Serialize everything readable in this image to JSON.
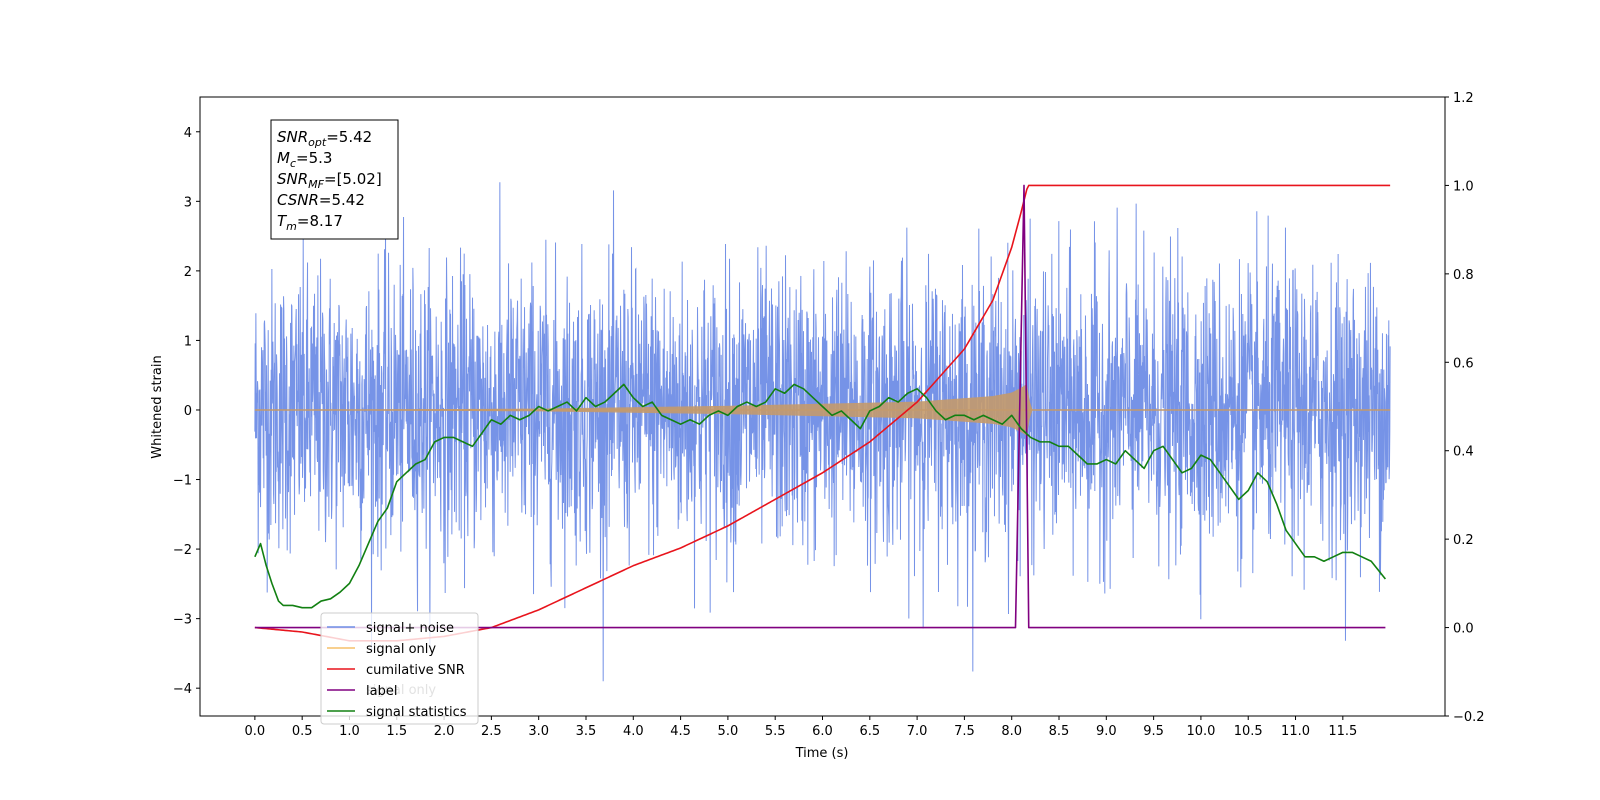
{
  "chart_data": {
    "type": "line",
    "xlabel": "Time (s)",
    "ylabel": "Whitened strain",
    "xlim": [
      -0.58,
      12.58
    ],
    "ylim": [
      -4.4,
      4.5
    ],
    "ylim_right": [
      -0.2,
      1.2
    ],
    "x_ticks": [
      "0.0",
      "0.5",
      "1.0",
      "1.5",
      "2.0",
      "2.5",
      "3.0",
      "3.5",
      "4.0",
      "4.5",
      "5.0",
      "5.5",
      "6.0",
      "6.5",
      "7.0",
      "7.5",
      "8.0",
      "8.5",
      "9.0",
      "9.5",
      "10.0",
      "10.5",
      "11.0",
      "11.5"
    ],
    "y_ticks_left": [
      "4",
      "3",
      "2",
      "1",
      "0",
      "−1",
      "−2",
      "−3",
      "−4"
    ],
    "y_ticks_right": [
      "1.2",
      "1.0",
      "0.8",
      "0.6",
      "0.4",
      "0.2",
      "0.0",
      "−0.2"
    ],
    "annotation": [
      {
        "base": "SNR",
        "sub": "opt",
        "value": "=5.42"
      },
      {
        "base": "M",
        "sub": "c",
        "value": "=5.3"
      },
      {
        "base": "SNR",
        "sub": "MF",
        "value": "=[5.02]"
      },
      {
        "base": "CSNR",
        "sub": "",
        "value": "=5.42"
      },
      {
        "base": "T",
        "sub": "m",
        "value": "=8.17"
      }
    ],
    "legend": {
      "placement": "lower-left",
      "entries": [
        {
          "label": "signal+ noise",
          "color": "#6f8de6"
        },
        {
          "label": "signal only",
          "color": "#f5c06a"
        },
        {
          "label": "cumilative SNR",
          "color": "#e8141c"
        },
        {
          "label": "label",
          "color": "#800080"
        },
        {
          "label": "signal statistics",
          "color": "#128012"
        }
      ],
      "hidden_text": "signal only"
    },
    "series": [
      {
        "name": "signal+ noise",
        "axis": "left",
        "color": "#6f8de6",
        "x_range": [
          0.0,
          12.0
        ],
        "amplitude_sd": 1.0,
        "range": [
          -3.9,
          4.1
        ]
      },
      {
        "name": "signal only",
        "axis": "left",
        "color": "#c49a6c",
        "envelope": {
          "x": [
            0.0,
            3.0,
            5.0,
            7.0,
            7.8,
            8.0,
            8.1,
            8.17,
            8.2,
            12.0
          ],
          "amp": [
            0.0,
            0.02,
            0.06,
            0.12,
            0.2,
            0.25,
            0.32,
            0.38,
            0.0,
            0.0
          ]
        }
      },
      {
        "name": "cumilative SNR",
        "axis": "right",
        "color": "#e8141c",
        "x": [
          0.0,
          0.5,
          1.0,
          1.5,
          2.0,
          2.5,
          3.0,
          3.5,
          4.0,
          4.5,
          5.0,
          5.5,
          6.0,
          6.5,
          7.0,
          7.5,
          7.8,
          8.0,
          8.1,
          8.17,
          12.0
        ],
        "values": [
          0.0,
          -0.01,
          -0.03,
          -0.03,
          -0.02,
          0.0,
          0.04,
          0.09,
          0.14,
          0.18,
          0.23,
          0.29,
          0.35,
          0.42,
          0.51,
          0.63,
          0.74,
          0.86,
          0.94,
          1.0,
          1.0
        ]
      },
      {
        "name": "label",
        "axis": "right",
        "color": "#800080",
        "x": [
          0.0,
          8.04,
          8.13,
          8.18,
          11.95
        ],
        "values": [
          0.0,
          0.0,
          1.0,
          0.0,
          0.0
        ]
      },
      {
        "name": "signal statistics",
        "axis": "right",
        "color": "#128012",
        "x": [
          0.0,
          0.06,
          0.12,
          0.18,
          0.25,
          0.3,
          0.4,
          0.5,
          0.6,
          0.7,
          0.8,
          0.9,
          1.0,
          1.1,
          1.2,
          1.3,
          1.4,
          1.5,
          1.6,
          1.7,
          1.8,
          1.9,
          2.0,
          2.1,
          2.2,
          2.3,
          2.4,
          2.5,
          2.6,
          2.7,
          2.8,
          2.9,
          3.0,
          3.1,
          3.2,
          3.3,
          3.4,
          3.5,
          3.6,
          3.7,
          3.8,
          3.9,
          4.0,
          4.1,
          4.2,
          4.3,
          4.4,
          4.5,
          4.6,
          4.7,
          4.8,
          4.9,
          5.0,
          5.1,
          5.2,
          5.3,
          5.4,
          5.5,
          5.6,
          5.7,
          5.8,
          5.9,
          6.0,
          6.1,
          6.2,
          6.3,
          6.4,
          6.5,
          6.6,
          6.7,
          6.8,
          6.9,
          7.0,
          7.1,
          7.2,
          7.3,
          7.4,
          7.5,
          7.6,
          7.7,
          7.8,
          7.9,
          8.0,
          8.1,
          8.2,
          8.3,
          8.4,
          8.5,
          8.6,
          8.7,
          8.8,
          8.9,
          9.0,
          9.1,
          9.2,
          9.3,
          9.4,
          9.5,
          9.6,
          9.7,
          9.8,
          9.9,
          10.0,
          10.1,
          10.2,
          10.3,
          10.4,
          10.5,
          10.6,
          10.7,
          10.8,
          10.9,
          11.0,
          11.1,
          11.2,
          11.3,
          11.4,
          11.5,
          11.6,
          11.7,
          11.8,
          11.95
        ],
        "values": [
          0.16,
          0.19,
          0.14,
          0.1,
          0.06,
          0.05,
          0.05,
          0.045,
          0.045,
          0.06,
          0.065,
          0.08,
          0.1,
          0.14,
          0.19,
          0.24,
          0.27,
          0.33,
          0.35,
          0.37,
          0.38,
          0.42,
          0.43,
          0.43,
          0.42,
          0.41,
          0.44,
          0.47,
          0.46,
          0.48,
          0.47,
          0.48,
          0.5,
          0.49,
          0.5,
          0.51,
          0.49,
          0.52,
          0.5,
          0.51,
          0.53,
          0.55,
          0.52,
          0.5,
          0.51,
          0.48,
          0.47,
          0.46,
          0.47,
          0.46,
          0.48,
          0.49,
          0.48,
          0.5,
          0.51,
          0.5,
          0.51,
          0.54,
          0.53,
          0.55,
          0.54,
          0.52,
          0.5,
          0.48,
          0.49,
          0.47,
          0.45,
          0.49,
          0.5,
          0.52,
          0.51,
          0.53,
          0.54,
          0.52,
          0.49,
          0.47,
          0.48,
          0.48,
          0.47,
          0.48,
          0.47,
          0.46,
          0.48,
          0.45,
          0.43,
          0.42,
          0.42,
          0.41,
          0.41,
          0.39,
          0.37,
          0.37,
          0.38,
          0.37,
          0.4,
          0.38,
          0.36,
          0.4,
          0.41,
          0.38,
          0.35,
          0.36,
          0.39,
          0.38,
          0.35,
          0.32,
          0.29,
          0.31,
          0.35,
          0.33,
          0.28,
          0.22,
          0.19,
          0.16,
          0.16,
          0.15,
          0.16,
          0.17,
          0.17,
          0.16,
          0.15,
          0.11
        ]
      }
    ]
  }
}
